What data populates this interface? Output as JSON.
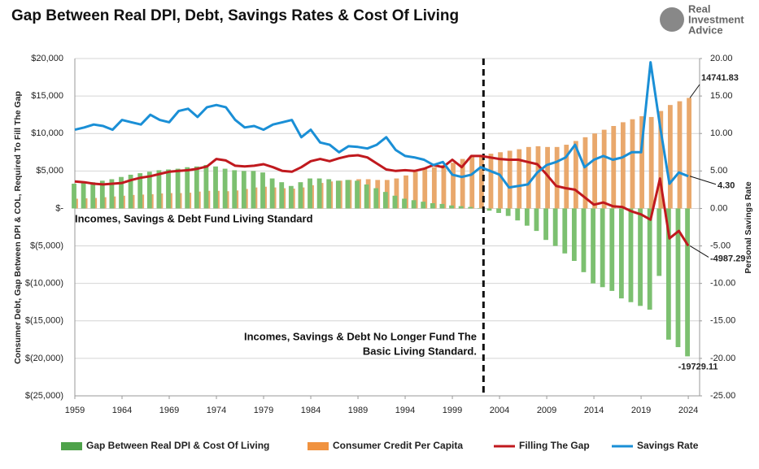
{
  "chart_data": {
    "type": "combo",
    "title": "Gap Between Real DPI, Debt, Savings Rates & Cost Of Living",
    "logo": [
      "Real",
      "Investment",
      "Advice"
    ],
    "y_label": "Consumer Debt, Gap Between DPI & COL, Required To Fill The Gap",
    "y2_label": "Personal Savings Rate",
    "annotations": [
      "Incomes, Savings & Debt Fund Living Standard",
      "Incomes, Savings & Debt No Longer Fund The",
      "Basic Living Standard."
    ],
    "vline_x": 2002.3,
    "x": [
      1959,
      1960,
      1961,
      1962,
      1963,
      1964,
      1965,
      1966,
      1967,
      1968,
      1969,
      1970,
      1971,
      1972,
      1973,
      1974,
      1975,
      1976,
      1977,
      1978,
      1979,
      1980,
      1981,
      1982,
      1983,
      1984,
      1985,
      1986,
      1987,
      1988,
      1989,
      1990,
      1991,
      1992,
      1993,
      1994,
      1995,
      1996,
      1997,
      1998,
      1999,
      2000,
      2001,
      2002,
      2003,
      2004,
      2005,
      2006,
      2007,
      2008,
      2009,
      2010,
      2011,
      2012,
      2013,
      2014,
      2015,
      2016,
      2017,
      2018,
      2019,
      2020,
      2021,
      2022,
      2023,
      2024
    ],
    "xlim": [
      1959,
      2025.2
    ],
    "xticks": [
      1959,
      1964,
      1969,
      1974,
      1979,
      1984,
      1989,
      1994,
      1999,
      2004,
      2009,
      2014,
      2019,
      2024
    ],
    "ylim": [
      -25000,
      20000
    ],
    "yticks": [
      {
        "value": 20000,
        "label": "$20,000"
      },
      {
        "value": 15000,
        "label": "$15,000"
      },
      {
        "value": 10000,
        "label": "$10,000"
      },
      {
        "value": 5000,
        "label": "$5,000"
      },
      {
        "value": 0,
        "label": "$-"
      },
      {
        "value": -5000,
        "label": "$(5,000)"
      },
      {
        "value": -10000,
        "label": "$(10,000)"
      },
      {
        "value": -15000,
        "label": "$(15,000)"
      },
      {
        "value": -20000,
        "label": "$(20,000)"
      },
      {
        "value": -25000,
        "label": "$(25,000)"
      }
    ],
    "y2lim": [
      -25,
      20
    ],
    "y2ticks": [
      {
        "value": 20,
        "label": "20.00"
      },
      {
        "value": 15,
        "label": "15.00"
      },
      {
        "value": 10,
        "label": "10.00"
      },
      {
        "value": 5,
        "label": "5.00"
      },
      {
        "value": 0,
        "label": "0.00"
      },
      {
        "value": -5,
        "label": "-5.00"
      },
      {
        "value": -10,
        "label": "-10.00"
      },
      {
        "value": -15,
        "label": "-15.00"
      },
      {
        "value": -20,
        "label": "-20.00"
      },
      {
        "value": -25,
        "label": "-25.00"
      }
    ],
    "grid": true,
    "series": [
      {
        "name": "Gap Between Real DPI & Cost Of Living",
        "type": "bar",
        "color": "#4ea24a",
        "bar_color": "#7cc070",
        "end_label": "-19729.11",
        "end_label_color": "#e0141c",
        "values": [
          3300,
          3400,
          3500,
          3700,
          3900,
          4200,
          4500,
          4700,
          4900,
          5100,
          5200,
          5300,
          5500,
          5600,
          5800,
          5600,
          5300,
          5100,
          5000,
          5000,
          4800,
          4000,
          3500,
          3000,
          3500,
          4000,
          4000,
          3900,
          3700,
          3800,
          3700,
          3200,
          2700,
          2200,
          1700,
          1300,
          1100,
          900,
          700,
          600,
          400,
          300,
          200,
          50,
          -300,
          -600,
          -1000,
          -1600,
          -2300,
          -3000,
          -4200,
          -5000,
          -6000,
          -7000,
          -8500,
          -10000,
          -10500,
          -11000,
          -12000,
          -12500,
          -13000,
          -13500,
          -9000,
          -17500,
          -18500,
          -19729.11
        ]
      },
      {
        "name": "Consumer Credit Per Capita",
        "type": "bar",
        "color": "#f0923f",
        "bar_color": "#e9a86c",
        "end_label": "14741.83",
        "end_label_color": "#111",
        "values": [
          1300,
          1350,
          1400,
          1500,
          1600,
          1700,
          1800,
          1850,
          1900,
          2000,
          2050,
          2050,
          2100,
          2250,
          2350,
          2350,
          2300,
          2400,
          2600,
          2800,
          2900,
          2800,
          2700,
          2650,
          2800,
          3100,
          3400,
          3600,
          3700,
          3800,
          3900,
          3900,
          3800,
          3800,
          4000,
          4400,
          4900,
          5300,
          5500,
          5800,
          6100,
          6600,
          6900,
          7100,
          7300,
          7500,
          7700,
          7900,
          8200,
          8300,
          8200,
          8200,
          8500,
          9000,
          9500,
          10000,
          10500,
          11000,
          11500,
          11900,
          12300,
          12200,
          13000,
          13800,
          14300,
          14741.83
        ]
      },
      {
        "name": "Filling The Gap",
        "type": "line",
        "color": "#c0191e",
        "end_label": "-4987.29",
        "end_label_color": "#e0141c",
        "values": [
          3600,
          3500,
          3300,
          3200,
          3300,
          3400,
          3800,
          4100,
          4300,
          4600,
          4900,
          5000,
          5100,
          5300,
          5600,
          6600,
          6400,
          5700,
          5600,
          5700,
          5900,
          5500,
          5000,
          4900,
          5500,
          6300,
          6600,
          6300,
          6700,
          7000,
          7100,
          6800,
          6000,
          5200,
          5000,
          5100,
          5000,
          5300,
          5800,
          5500,
          6500,
          5500,
          7000,
          7000,
          6800,
          6600,
          6500,
          6500,
          6200,
          5900,
          4500,
          3000,
          2700,
          2500,
          1500,
          500,
          800,
          300,
          200,
          -400,
          -800,
          -1500,
          4000,
          -4000,
          -3000,
          -4987.29
        ]
      },
      {
        "name": "Savings Rate",
        "type": "line",
        "axis": "y2",
        "color": "#1a8fd6",
        "end_label": "4.30",
        "end_label_color": "#1a8fd6",
        "values": [
          10.5,
          10.8,
          11.2,
          11.0,
          10.5,
          11.8,
          11.5,
          11.2,
          12.5,
          11.8,
          11.5,
          13.0,
          13.3,
          12.2,
          13.5,
          13.8,
          13.5,
          11.8,
          10.8,
          11.0,
          10.5,
          11.2,
          11.5,
          11.8,
          9.5,
          10.5,
          8.8,
          8.5,
          7.5,
          8.3,
          8.2,
          8.0,
          8.5,
          9.5,
          7.8,
          7.0,
          6.8,
          6.5,
          5.8,
          6.2,
          4.5,
          4.2,
          4.5,
          5.5,
          5.0,
          4.5,
          2.8,
          3.0,
          3.2,
          4.8,
          5.8,
          6.2,
          6.8,
          8.5,
          5.5,
          6.5,
          7.0,
          6.5,
          6.8,
          7.5,
          7.5,
          19.5,
          11.0,
          3.3,
          4.8,
          4.3
        ]
      }
    ]
  }
}
